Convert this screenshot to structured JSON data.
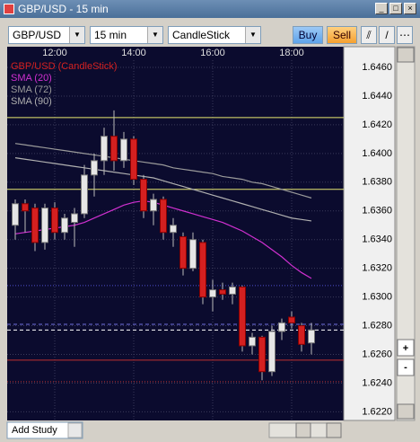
{
  "window": {
    "title": "GBP/USD - 15 min"
  },
  "toolbar": {
    "symbol": "GBP/USD",
    "interval": "15 min",
    "chart_type": "CandleStick",
    "buy": "Buy",
    "sell": "Sell"
  },
  "footer": {
    "add_study": "Add Study"
  },
  "chart_data": {
    "type": "candlestick",
    "name": "GBP/USD (CandleStick)",
    "color": "#d42020",
    "up_color": "#e6e6e6",
    "categories": [
      null,
      null,
      null,
      null,
      "12:00",
      null,
      null,
      null,
      null,
      null,
      null,
      null,
      "14:00",
      null,
      null,
      null,
      null,
      null,
      null,
      null,
      "16:00",
      null,
      null,
      null,
      null,
      null,
      null,
      null,
      "18:00",
      null,
      null
    ],
    "open": [
      1.635,
      1.6365,
      1.6362,
      1.6338,
      1.6362,
      1.6345,
      1.6352,
      1.6358,
      1.6385,
      1.6395,
      1.6412,
      1.6395,
      1.641,
      1.6382,
      1.636,
      1.6368,
      1.6345,
      1.6342,
      1.632,
      1.6338,
      1.63,
      1.6305,
      1.6302,
      1.6307,
      1.6266,
      1.6272,
      1.6248,
      1.6276,
      1.6286,
      1.628,
      1.6268
    ],
    "high": [
      1.6368,
      1.6368,
      1.6365,
      1.6365,
      1.6366,
      1.6358,
      1.6362,
      1.6392,
      1.64,
      1.6418,
      1.643,
      1.6415,
      1.6412,
      1.6385,
      1.6372,
      1.637,
      1.6355,
      1.6345,
      1.6345,
      1.634,
      1.6312,
      1.631,
      1.631,
      1.6308,
      1.6275,
      1.6273,
      1.628,
      1.6285,
      1.629,
      1.6282,
      1.6282
    ],
    "low": [
      1.634,
      1.6345,
      1.6332,
      1.6333,
      1.634,
      1.634,
      1.6335,
      1.6355,
      1.637,
      1.6385,
      1.6388,
      1.639,
      1.6378,
      1.6355,
      1.635,
      1.634,
      1.6335,
      1.6315,
      1.6318,
      1.6295,
      1.629,
      1.6298,
      1.6295,
      1.6262,
      1.626,
      1.6242,
      1.6245,
      1.627,
      1.6278,
      1.6262,
      1.626
    ],
    "close": [
      1.6365,
      1.636,
      1.6338,
      1.6362,
      1.6345,
      1.6355,
      1.6358,
      1.6385,
      1.6395,
      1.6412,
      1.6395,
      1.641,
      1.6382,
      1.636,
      1.6368,
      1.6345,
      1.635,
      1.632,
      1.634,
      1.63,
      1.6305,
      1.6302,
      1.6307,
      1.6266,
      1.6272,
      1.6248,
      1.6276,
      1.6282,
      1.6282,
      1.6267,
      1.6277
    ],
    "series": [
      {
        "name": "SMA (20)",
        "color": "#d030d0",
        "values": [
          1.6344,
          1.6345,
          1.6346,
          1.6347,
          1.6348,
          1.6349,
          1.635,
          1.6352,
          1.6355,
          1.6358,
          1.6361,
          1.6364,
          1.6366,
          1.6367,
          1.6366,
          1.6364,
          1.6362,
          1.636,
          1.6358,
          1.6356,
          1.6354,
          1.6352,
          1.6349,
          1.6346,
          1.6342,
          1.6338,
          1.6333,
          1.6328,
          1.6322,
          1.6317,
          1.6313
        ]
      },
      {
        "name": "SMA (72)",
        "color": "#9a9a9a",
        "values": [
          1.6407,
          1.6406,
          1.6405,
          1.6404,
          1.6403,
          1.6402,
          1.6401,
          1.64,
          1.6399,
          1.6398,
          1.6397,
          1.6396,
          1.6395,
          1.6394,
          1.6393,
          1.6392,
          1.639,
          1.6389,
          1.6388,
          1.6387,
          1.6386,
          1.6384,
          1.6383,
          1.6382,
          1.638,
          1.6379,
          1.6377,
          1.6375,
          1.6373,
          1.6371,
          1.6369
        ]
      },
      {
        "name": "SMA (90)",
        "color": "#b0b0b0",
        "values": [
          1.6397,
          1.6396,
          1.6395,
          1.6394,
          1.6393,
          1.6392,
          1.6391,
          1.639,
          1.6389,
          1.6388,
          1.6387,
          1.6386,
          1.6385,
          1.6384,
          1.6383,
          1.6381,
          1.6379,
          1.6377,
          1.6375,
          1.6373,
          1.6371,
          1.6369,
          1.6367,
          1.6365,
          1.6363,
          1.6361,
          1.6359,
          1.6357,
          1.6355,
          1.6354,
          1.6353
        ]
      }
    ],
    "levels": [
      {
        "value": 1.6425,
        "color": "#e8e870",
        "style": "solid"
      },
      {
        "value": 1.6375,
        "color": "#e8e870",
        "style": "solid"
      },
      {
        "value": 1.6308,
        "color": "#5050d0",
        "style": "dotted"
      },
      {
        "value": 1.6281,
        "color": "#7070e0",
        "style": "dashed"
      },
      {
        "value": 1.6277,
        "color": "#ffffff",
        "style": "dashed"
      },
      {
        "value": 1.6256,
        "color": "#c03030",
        "style": "solid"
      },
      {
        "value": 1.6241,
        "color": "#c03030",
        "style": "dotted"
      }
    ],
    "ylim": [
      1.6214,
      1.6465
    ],
    "yticks": [
      {
        "value": 1.646,
        "label": "1.6460"
      },
      {
        "value": 1.644,
        "label": "1.6440"
      },
      {
        "value": 1.642,
        "label": "1.6420"
      },
      {
        "value": 1.64,
        "label": "1.6400"
      },
      {
        "value": 1.638,
        "label": "1.6380"
      },
      {
        "value": 1.636,
        "label": "1.6360"
      },
      {
        "value": 1.634,
        "label": "1.6340"
      },
      {
        "value": 1.632,
        "label": "1.6320"
      },
      {
        "value": 1.63,
        "label": "1.6300"
      },
      {
        "value": 1.628,
        "label": "1.6280"
      },
      {
        "value": 1.626,
        "label": "1.6260"
      },
      {
        "value": 1.624,
        "label": "1.6240"
      },
      {
        "value": 1.622,
        "label": "1.6220"
      }
    ],
    "grid": true
  }
}
